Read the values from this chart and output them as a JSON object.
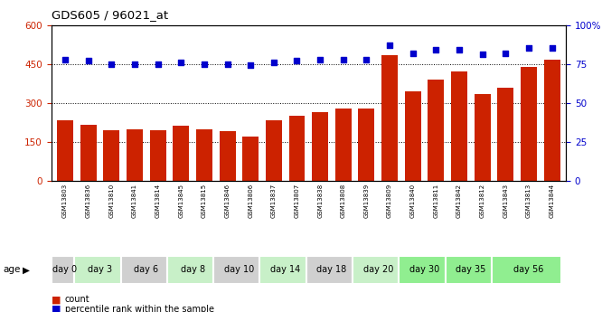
{
  "title": "GDS605 / 96021_at",
  "samples": [
    "GSM13803",
    "GSM13836",
    "GSM13810",
    "GSM13841",
    "GSM13814",
    "GSM13845",
    "GSM13815",
    "GSM13846",
    "GSM13806",
    "GSM13837",
    "GSM13807",
    "GSM13838",
    "GSM13808",
    "GSM13839",
    "GSM13809",
    "GSM13840",
    "GSM13811",
    "GSM13842",
    "GSM13812",
    "GSM13843",
    "GSM13813",
    "GSM13844"
  ],
  "bar_values": [
    235,
    215,
    195,
    200,
    195,
    213,
    197,
    193,
    170,
    235,
    250,
    265,
    280,
    280,
    485,
    345,
    390,
    420,
    335,
    360,
    440,
    468
  ],
  "dot_values": [
    78,
    77,
    75,
    75,
    75,
    76,
    75,
    75,
    74,
    76,
    77,
    78,
    78,
    78,
    87,
    82,
    84,
    84,
    81,
    82,
    85,
    85
  ],
  "age_groups": [
    {
      "label": "day 0",
      "start": 0,
      "end": 1,
      "color": "#d0d0d0"
    },
    {
      "label": "day 3",
      "start": 1,
      "end": 3,
      "color": "#c8f0c8"
    },
    {
      "label": "day 6",
      "start": 3,
      "end": 5,
      "color": "#d0d0d0"
    },
    {
      "label": "day 8",
      "start": 5,
      "end": 7,
      "color": "#c8f0c8"
    },
    {
      "label": "day 10",
      "start": 7,
      "end": 9,
      "color": "#d0d0d0"
    },
    {
      "label": "day 14",
      "start": 9,
      "end": 11,
      "color": "#c8f0c8"
    },
    {
      "label": "day 18",
      "start": 11,
      "end": 13,
      "color": "#d0d0d0"
    },
    {
      "label": "day 20",
      "start": 13,
      "end": 15,
      "color": "#c8f0c8"
    },
    {
      "label": "day 30",
      "start": 15,
      "end": 17,
      "color": "#90ee90"
    },
    {
      "label": "day 35",
      "start": 17,
      "end": 19,
      "color": "#90ee90"
    },
    {
      "label": "day 56",
      "start": 19,
      "end": 22,
      "color": "#90ee90"
    }
  ],
  "bar_color": "#cc2200",
  "dot_color": "#0000cc",
  "left_ylim": [
    0,
    600
  ],
  "left_yticks": [
    0,
    150,
    300,
    450,
    600
  ],
  "right_ylim": [
    0,
    100
  ],
  "right_yticks": [
    0,
    25,
    50,
    75,
    100
  ],
  "grid_lines": [
    150,
    300,
    450
  ],
  "bg_color": "#ffffff",
  "plot_bg": "#ffffff",
  "legend_count_label": "count",
  "legend_pct_label": "percentile rank within the sample"
}
